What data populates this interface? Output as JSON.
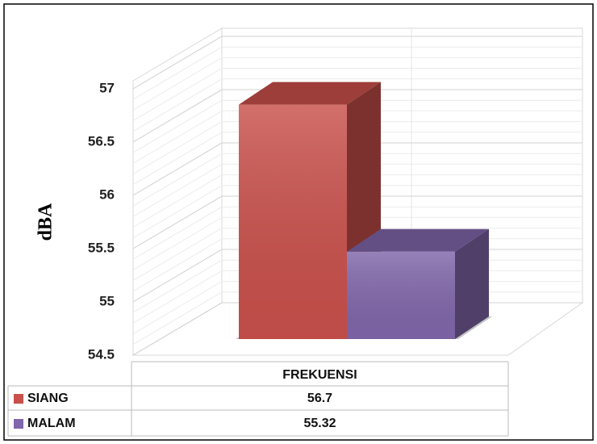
{
  "chart_data": {
    "type": "bar3d",
    "ylabel": "dBA",
    "categories": [
      "FREKUENSI"
    ],
    "series": [
      {
        "name": "SIANG",
        "color": "#c9504b",
        "values": [
          56.7
        ]
      },
      {
        "name": "MALAM",
        "color": "#8066aa",
        "values": [
          55.32
        ]
      }
    ],
    "ylim": [
      54.5,
      57
    ],
    "yticks": [
      54.5,
      55,
      55.5,
      56,
      56.5,
      57
    ],
    "grid": true
  }
}
